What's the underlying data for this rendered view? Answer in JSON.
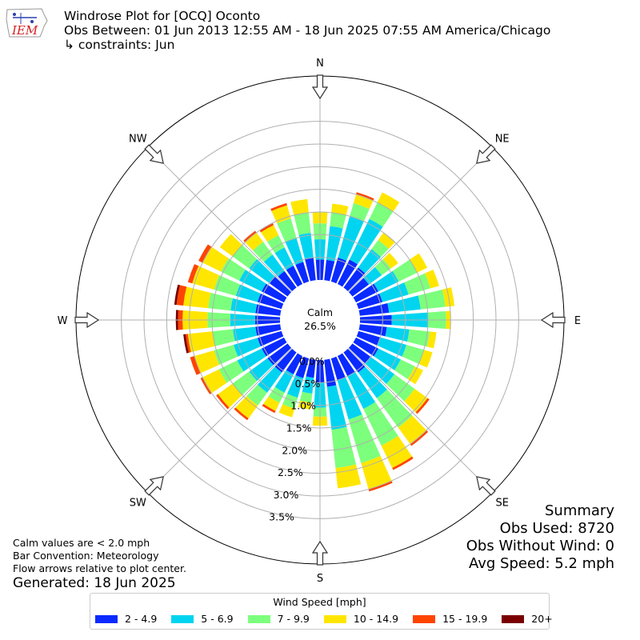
{
  "header": {
    "title": "Windrose Plot for [OCQ] Oconto",
    "obs_range": "Obs Between: 01 Jun 2013 12:55 AM - 18 Jun 2025 07:55 AM America/Chicago",
    "constraints": "↳ constraints: Jun"
  },
  "logo": {
    "text": "IEM",
    "icon": "iowa-state-logo-icon"
  },
  "summary": {
    "title": "Summary",
    "obs_used": "Obs Used: 8720",
    "obs_without_wind": "Obs Without Wind: 0",
    "avg_speed": "Avg Speed: 5.2 mph"
  },
  "notes": {
    "line1": "Calm values are < 2.0 mph",
    "line2": "Bar Convention: Meteorology",
    "line3": "Flow arrows relative to plot center."
  },
  "generated": "Generated: 18 Jun 2025",
  "chart_data": {
    "type": "windrose",
    "calm_label": "Calm",
    "calm_value": "26.5%",
    "radial_tick_labels": [
      "0.0%",
      "0.5%",
      "1.0%",
      "1.5%",
      "2.0%",
      "2.5%",
      "3.0%",
      "3.5%"
    ],
    "radial_ticks": [
      0,
      0.5,
      1.0,
      1.5,
      2.0,
      2.5,
      3.0,
      3.5
    ],
    "rmax": 4.5,
    "directions": [
      {
        "label": "N",
        "deg": 0
      },
      {
        "label": "NE",
        "deg": 45
      },
      {
        "label": "E",
        "deg": 90
      },
      {
        "label": "SE",
        "deg": 135
      },
      {
        "label": "S",
        "deg": 180
      },
      {
        "label": "SW",
        "deg": 225
      },
      {
        "label": "W",
        "deg": 270
      },
      {
        "label": "NW",
        "deg": 315
      }
    ],
    "legend_title": "Wind Speed [mph]",
    "bins": [
      {
        "label": "2 - 4.9",
        "color": "#0a2aff"
      },
      {
        "label": "5 - 6.9",
        "color": "#00d4f0"
      },
      {
        "label": "7 - 9.9",
        "color": "#7cff7c"
      },
      {
        "label": "10 - 14.9",
        "color": "#ffe600"
      },
      {
        "label": "15 - 19.9",
        "color": "#ff4400"
      },
      {
        "label": "20+",
        "color": "#7a0000"
      }
    ],
    "sector_width_deg": 10,
    "sectors": [
      {
        "deg": 0,
        "values": [
          0.45,
          0.45,
          0.35,
          0.25,
          0.0,
          0.0
        ]
      },
      {
        "deg": 10,
        "values": [
          0.45,
          0.75,
          0.3,
          0.2,
          0.0,
          0.0
        ]
      },
      {
        "deg": 20,
        "values": [
          0.55,
          0.95,
          0.3,
          0.2,
          0.05,
          0.0
        ]
      },
      {
        "deg": 30,
        "values": [
          0.6,
          1.0,
          0.4,
          0.25,
          0.0,
          0.0
        ]
      },
      {
        "deg": 40,
        "values": [
          0.55,
          0.5,
          0.25,
          0.2,
          0.0,
          0.0
        ]
      },
      {
        "deg": 50,
        "values": [
          0.45,
          0.35,
          0.25,
          0.2,
          0.0,
          0.0
        ]
      },
      {
        "deg": 60,
        "values": [
          0.55,
          0.5,
          0.45,
          0.25,
          0.0,
          0.0
        ]
      },
      {
        "deg": 70,
        "values": [
          0.55,
          0.6,
          0.5,
          0.2,
          0.0,
          0.0
        ]
      },
      {
        "deg": 80,
        "values": [
          0.65,
          0.7,
          0.55,
          0.2,
          0.0,
          0.0
        ]
      },
      {
        "deg": 90,
        "values": [
          0.7,
          0.8,
          0.4,
          0.1,
          0.0,
          0.0
        ]
      },
      {
        "deg": 100,
        "values": [
          0.6,
          0.5,
          0.45,
          0.15,
          0.0,
          0.0
        ]
      },
      {
        "deg": 110,
        "values": [
          0.5,
          0.6,
          0.4,
          0.2,
          0.0,
          0.0
        ]
      },
      {
        "deg": 120,
        "values": [
          0.55,
          0.55,
          0.35,
          0.2,
          0.0,
          0.0
        ]
      },
      {
        "deg": 130,
        "values": [
          0.5,
          0.65,
          0.55,
          0.35,
          0.05,
          0.0
        ]
      },
      {
        "deg": 140,
        "values": [
          0.55,
          0.7,
          0.8,
          0.45,
          0.05,
          0.0
        ]
      },
      {
        "deg": 150,
        "values": [
          0.5,
          0.8,
          0.9,
          0.55,
          0.05,
          0.0
        ]
      },
      {
        "deg": 160,
        "values": [
          0.5,
          0.9,
          1.0,
          0.6,
          0.05,
          0.0
        ]
      },
      {
        "deg": 170,
        "values": [
          0.6,
          0.95,
          0.85,
          0.45,
          0.0,
          0.0
        ]
      },
      {
        "deg": 180,
        "values": [
          0.5,
          0.55,
          0.2,
          0.2,
          0.0,
          0.0
        ]
      },
      {
        "deg": 190,
        "values": [
          0.4,
          0.35,
          0.2,
          0.15,
          0.0,
          0.0
        ]
      },
      {
        "deg": 200,
        "values": [
          0.45,
          0.45,
          0.25,
          0.2,
          0.0,
          0.0
        ]
      },
      {
        "deg": 210,
        "values": [
          0.45,
          0.45,
          0.25,
          0.2,
          0.05,
          0.0
        ]
      },
      {
        "deg": 220,
        "values": [
          0.55,
          0.55,
          0.35,
          0.35,
          0.05,
          0.0
        ]
      },
      {
        "deg": 230,
        "values": [
          0.55,
          0.5,
          0.45,
          0.4,
          0.05,
          0.0
        ]
      },
      {
        "deg": 240,
        "values": [
          0.55,
          0.6,
          0.45,
          0.4,
          0.05,
          0.0
        ]
      },
      {
        "deg": 250,
        "values": [
          0.55,
          0.55,
          0.45,
          0.45,
          0.1,
          0.0
        ]
      },
      {
        "deg": 260,
        "values": [
          0.55,
          0.5,
          0.45,
          0.55,
          0.05,
          0.05
        ]
      },
      {
        "deg": 270,
        "values": [
          0.55,
          0.55,
          0.5,
          0.55,
          0.1,
          0.05
        ]
      },
      {
        "deg": 280,
        "values": [
          0.55,
          0.55,
          0.5,
          0.55,
          0.15,
          0.05
        ]
      },
      {
        "deg": 290,
        "values": [
          0.55,
          0.5,
          0.5,
          0.5,
          0.1,
          0.0
        ]
      },
      {
        "deg": 300,
        "values": [
          0.55,
          0.55,
          0.45,
          0.45,
          0.1,
          0.0
        ]
      },
      {
        "deg": 310,
        "values": [
          0.5,
          0.55,
          0.45,
          0.35,
          0.0,
          0.0
        ]
      },
      {
        "deg": 320,
        "values": [
          0.45,
          0.45,
          0.35,
          0.25,
          0.05,
          0.0
        ]
      },
      {
        "deg": 330,
        "values": [
          0.45,
          0.45,
          0.3,
          0.25,
          0.05,
          0.0
        ]
      },
      {
        "deg": 340,
        "values": [
          0.45,
          0.55,
          0.45,
          0.3,
          0.05,
          0.0
        ]
      },
      {
        "deg": 350,
        "values": [
          0.5,
          0.55,
          0.45,
          0.3,
          0.0,
          0.0
        ]
      }
    ]
  }
}
